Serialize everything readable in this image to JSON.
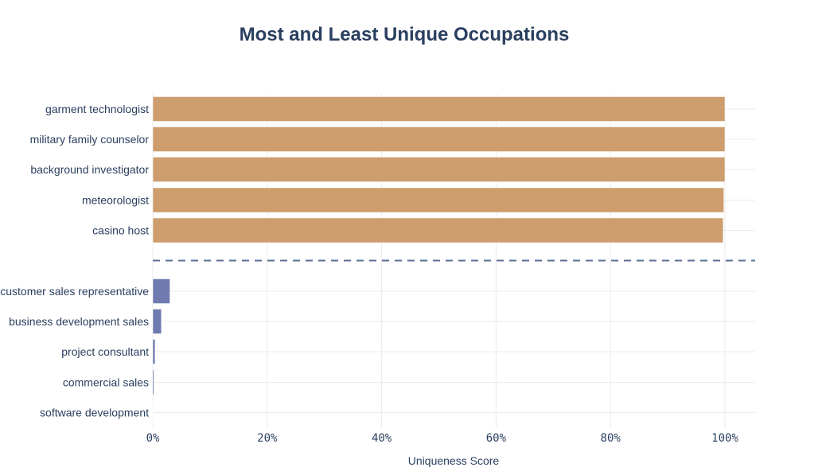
{
  "chart_data": {
    "type": "bar",
    "orientation": "horizontal",
    "title": "Most and Least Unique Occupations",
    "xlabel": "Uniqueness Score",
    "ylabel": "",
    "xlim": [
      0,
      1.05
    ],
    "x_ticks": [
      {
        "value": 0,
        "label": "0%"
      },
      {
        "value": 0.2,
        "label": "20%"
      },
      {
        "value": 0.4,
        "label": "40%"
      },
      {
        "value": 0.6,
        "label": "60%"
      },
      {
        "value": 0.8,
        "label": "80%"
      },
      {
        "value": 1.0,
        "label": "100%"
      }
    ],
    "grid": true,
    "separator": "dashed line between groups",
    "groups": [
      {
        "color": "#cd9d6e",
        "categories": [
          "garment technologist",
          "military family counselor",
          "background investigator",
          "meteorologist",
          "casino host"
        ],
        "values": [
          1.0,
          1.0,
          1.0,
          0.998,
          0.997
        ]
      },
      {
        "color": "#6f7bb0",
        "categories": [
          "customer sales representative",
          "business development sales",
          "project consultant",
          "commercial sales",
          "software development"
        ],
        "values": [
          0.03,
          0.015,
          0.004,
          0.002,
          0.0005
        ]
      }
    ]
  }
}
